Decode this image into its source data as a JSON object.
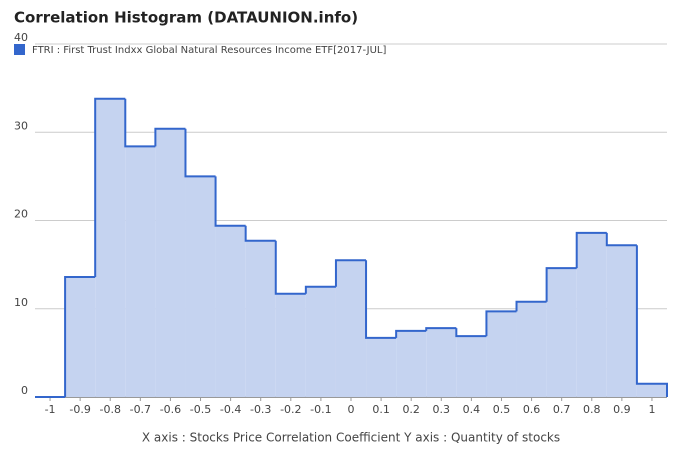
{
  "chart_data": {
    "type": "histogram",
    "title": "Correlation Histogram (DATAUNION.info)",
    "x_label": "X axis : Stocks Price Correlation Coefficient  Y axis : Quantity of stocks",
    "series": [
      {
        "name": "FTRI : First Trust Indxx Global Natural Resources Income ETF[2017-JUL]",
        "color": "#3366cc",
        "fill": "#c5d3f0",
        "bins": [
          -1.05,
          -0.95,
          -0.85,
          -0.75,
          -0.65,
          -0.55,
          -0.45,
          -0.35,
          -0.25,
          -0.15,
          -0.05,
          0.05,
          0.15,
          0.25,
          0.35,
          0.45,
          0.55,
          0.65,
          0.75,
          0.85,
          0.95,
          1.05
        ],
        "counts": [
          0,
          13.6,
          33.8,
          28.4,
          30.4,
          25.0,
          19.4,
          17.7,
          11.7,
          12.5,
          15.5,
          6.7,
          7.5,
          7.8,
          6.9,
          9.7,
          10.8,
          14.6,
          18.6,
          17.2,
          1.5
        ]
      }
    ],
    "xlim": [
      -1.05,
      1.05
    ],
    "xticks": [
      -1,
      -0.9,
      -0.8,
      -0.7,
      -0.6,
      -0.5,
      -0.4,
      -0.3,
      -0.2,
      -0.1,
      0,
      0.1,
      0.2,
      0.3,
      0.4,
      0.5,
      0.6,
      0.7,
      0.8,
      0.9,
      1
    ],
    "ylim": [
      0,
      40
    ],
    "yticks": [
      0,
      10,
      20,
      30,
      40
    ],
    "grid": true
  }
}
